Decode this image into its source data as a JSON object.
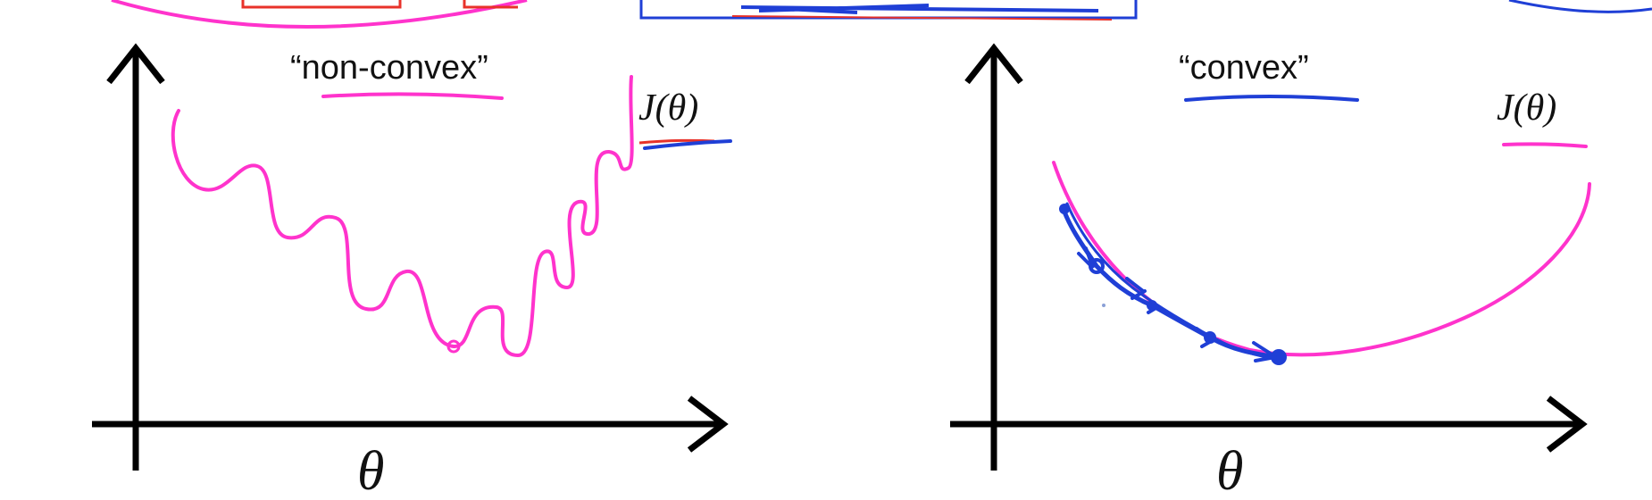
{
  "left_panel": {
    "title": "“non-convex”",
    "y_label": "J(θ)",
    "x_label": "θ",
    "curve_color": "#ff33cc"
  },
  "right_panel": {
    "title": "“convex”",
    "y_label": "J(θ)",
    "x_label": "θ",
    "curve_color": "#ff33cc",
    "descent_color": "#1f3fd6"
  },
  "colors": {
    "axis": "#000000",
    "magenta": "#ff33cc",
    "blue": "#1f3fd6",
    "red": "#e8322a"
  }
}
